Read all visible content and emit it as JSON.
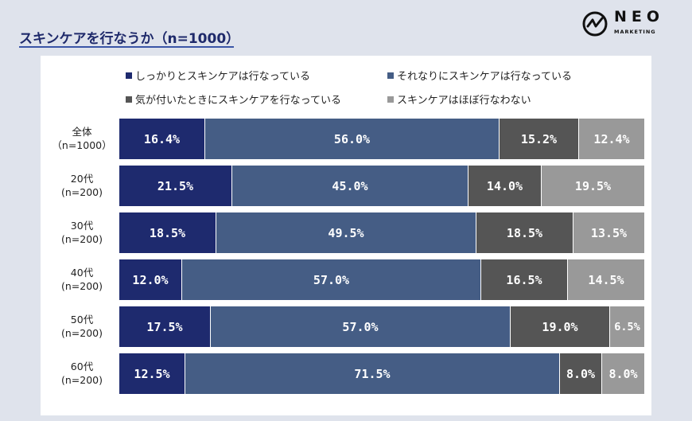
{
  "header": {
    "title": "スキンケアを行なうか（n=1000）"
  },
  "logo": {
    "word": "NEO",
    "sub": "MARKETING"
  },
  "colors": {
    "c1": "#1e2a6e",
    "c2": "#455d85",
    "c3": "#555555",
    "c4": "#999999"
  },
  "chart_data": {
    "type": "bar",
    "orientation": "horizontal",
    "stacked": true,
    "normalized": true,
    "categories": [
      {
        "label": "全体",
        "n": "（n=1000）"
      },
      {
        "label": "20代",
        "n": "(n=200)"
      },
      {
        "label": "30代",
        "n": "(n=200)"
      },
      {
        "label": "40代",
        "n": "(n=200)"
      },
      {
        "label": "50代",
        "n": "(n=200)"
      },
      {
        "label": "60代",
        "n": "(n=200)"
      }
    ],
    "series": [
      {
        "name": "しっかりとスキンケアは行なっている",
        "color": "#1e2a6e",
        "values": [
          16.4,
          21.5,
          18.5,
          12.0,
          17.5,
          12.5
        ],
        "labels": [
          "16.4%",
          "21.5%",
          "18.5%",
          "12.0%",
          "17.5%",
          "12.5%"
        ]
      },
      {
        "name": "それなりにスキンケアは行なっている",
        "color": "#455d85",
        "values": [
          56.0,
          45.0,
          49.5,
          57.0,
          57.0,
          71.5
        ],
        "labels": [
          "56.0%",
          "45.0%",
          "49.5%",
          "57.0%",
          "57.0%",
          "71.5%"
        ]
      },
      {
        "name": "気が付いたときにスキンケアを行なっている",
        "color": "#555555",
        "values": [
          15.2,
          14.0,
          18.5,
          16.5,
          19.0,
          8.0
        ],
        "labels": [
          "15.2%",
          "14.0%",
          "18.5%",
          "16.5%",
          "19.0%",
          "8.0%"
        ]
      },
      {
        "name": "スキンケアはほぼ行なわない",
        "color": "#999999",
        "values": [
          12.4,
          19.5,
          13.5,
          14.5,
          6.5,
          8.0
        ],
        "labels": [
          "12.4%",
          "19.5%",
          "13.5%",
          "14.5%",
          "6.5%",
          "8.0%"
        ]
      }
    ],
    "xlim": [
      0,
      100
    ],
    "legend_position": "top",
    "grid": false
  }
}
